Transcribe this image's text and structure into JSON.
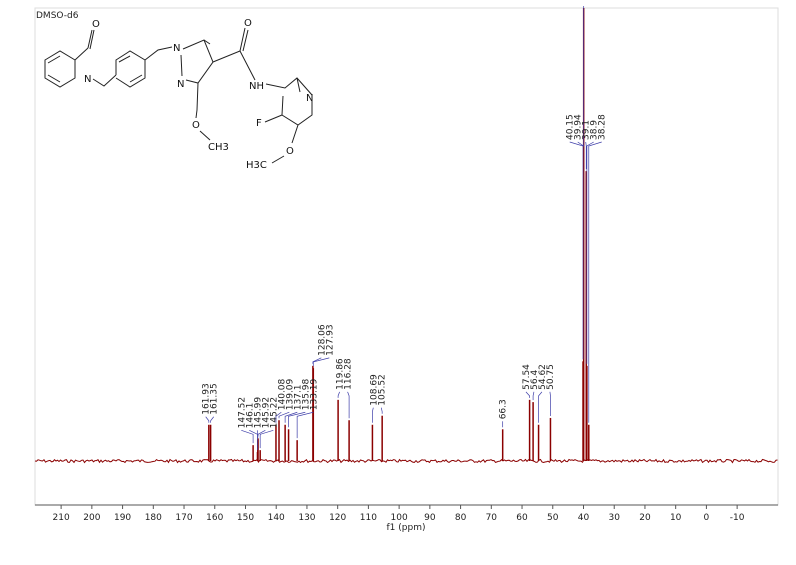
{
  "chart_data": {
    "type": "spectrum",
    "solvent": "DMSO-d6",
    "xlabel": "f1 (ppm)",
    "xlim": [
      218.5,
      -23.3
    ],
    "xticks": [
      210,
      200,
      190,
      180,
      170,
      160,
      150,
      140,
      130,
      120,
      110,
      100,
      90,
      80,
      70,
      60,
      50,
      40,
      30,
      20,
      10,
      0,
      -10
    ],
    "ylim": [
      0,
      100
    ],
    "color": "#8b0000",
    "label_color": "#3c3ca8",
    "peaks": {
      "x": [
        161.93,
        161.35,
        147.52,
        145.99,
        145.92,
        145.22,
        146.1,
        140.08,
        139.09,
        137.1,
        135.98,
        133.19,
        128.06,
        127.93,
        119.86,
        116.28,
        108.69,
        105.52,
        66.3,
        57.54,
        56.4,
        54.62,
        50.75,
        40.15,
        39.94,
        39.1,
        38.9,
        38.28
      ],
      "values": [
        8,
        8,
        3.5,
        4.6,
        5,
        2.4,
        2,
        8,
        9,
        8,
        7,
        4.6,
        21,
        20.5,
        13.5,
        9,
        8,
        10,
        7,
        13.5,
        13,
        8,
        9.5,
        22,
        100,
        64,
        21,
        8
      ]
    }
  },
  "structure": {
    "atoms": [
      "O",
      "N",
      "N",
      "N",
      "NH",
      "O",
      "CH3",
      "F",
      "N",
      "H3C",
      "O"
    ]
  }
}
